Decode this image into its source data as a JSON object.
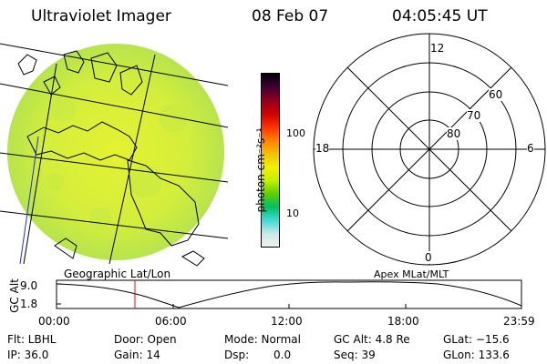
{
  "header": {
    "title": "Ultraviolet Imager",
    "date": "08 Feb 07",
    "time": "04:05:45 UT"
  },
  "image_panel": {
    "label": "Geographic Lat/Lon"
  },
  "colorbar": {
    "unit_label": "photon cm⁻²s⁻¹",
    "ticks": [
      {
        "label": "100",
        "value": 100
      },
      {
        "label": "10",
        "value": 10
      }
    ],
    "scale": "log",
    "colors": [
      "#f0f0f0",
      "#c8e8e8",
      "#40d8d8",
      "#00c060",
      "#60d000",
      "#c8f000",
      "#f0f000",
      "#f0c000",
      "#ff8000",
      "#ff3000",
      "#d00000",
      "#900020",
      "#400030",
      "#000010"
    ]
  },
  "polar_plot": {
    "label": "Apex MLat/MLT",
    "mlt_labels": [
      "12",
      "18",
      "6",
      "0"
    ],
    "mlat_labels": [
      "60",
      "70",
      "80"
    ]
  },
  "altitude_plot": {
    "ylabel": "GC Alt",
    "yticks": [
      "9.0",
      "1.8"
    ],
    "xticks": [
      "00:00",
      "06:00",
      "12:00",
      "18:00",
      "23:59"
    ]
  },
  "status": {
    "filter": "Flt: LBHL",
    "ip": "IP: 36.0",
    "door": "Door: Open",
    "gain": "Gain: 14",
    "mode": "Mode: Normal",
    "dsp_label": "Dsp:",
    "dsp_value": "0.0",
    "gc_alt": "GC Alt: 4.8 Re",
    "seq": "Seq: 39",
    "glat": "GLat: −15.6",
    "glon": "GLon: 133.6"
  },
  "colors": {
    "marker": "#ff0000",
    "image_base": "#d6f03c"
  }
}
